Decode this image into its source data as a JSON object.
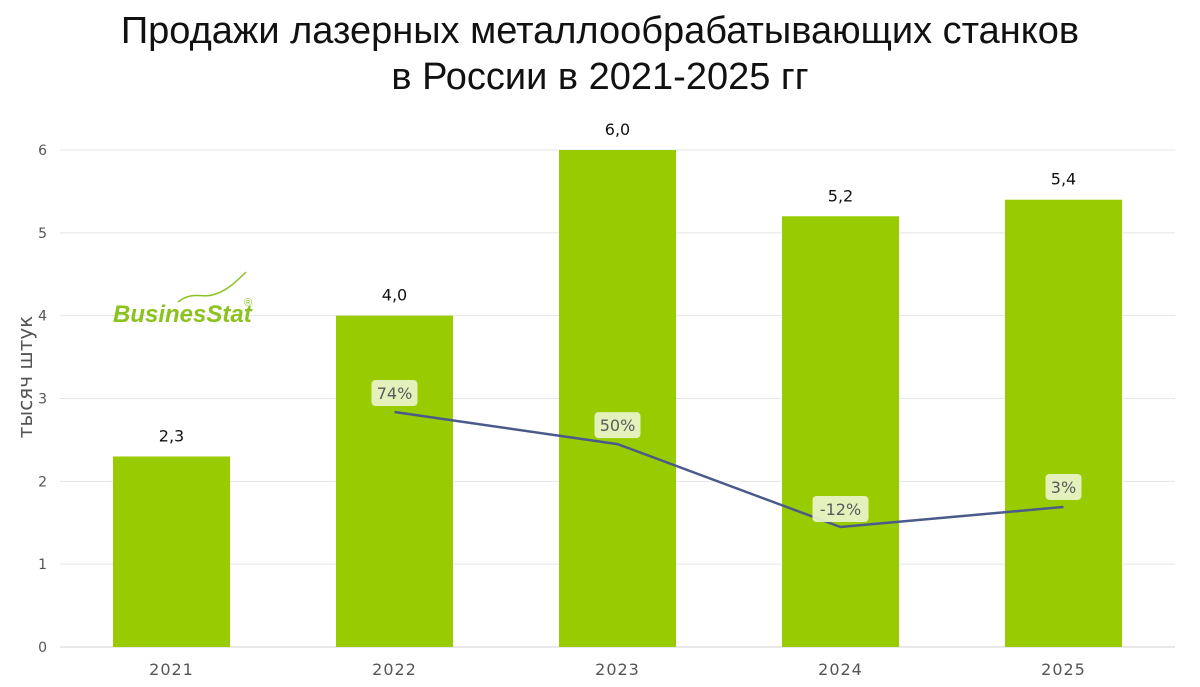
{
  "chart_data": {
    "type": "bar",
    "title_lines": [
      "Продажи лазерных металлообрабатывающих станков",
      "в России в 2021-2025 гг"
    ],
    "ylabel": "тысяч штук",
    "ylim": [
      0,
      6
    ],
    "yticks": [
      "0",
      "1",
      "2",
      "3",
      "4",
      "5",
      "6"
    ],
    "categories": [
      "2021",
      "2022",
      "2023",
      "2024",
      "2025"
    ],
    "series": [
      {
        "name": "Продажи",
        "values": [
          2.3,
          4.0,
          6.0,
          5.2,
          5.4
        ],
        "labels": [
          "2,3",
          "4,0",
          "6,0",
          "5,2",
          "5,4"
        ]
      }
    ],
    "growth": {
      "categories": [
        "2022",
        "2023",
        "2024",
        "2025"
      ],
      "values": [
        74,
        50,
        -12,
        3
      ],
      "labels": [
        "74%",
        "50%",
        "-12%",
        "3%"
      ]
    },
    "colors": {
      "bar": "#99cc00",
      "line": "#4a5a8a",
      "grid": "#e5e5e5",
      "badge": "#eaf4cc"
    },
    "logo": {
      "text": "BusinesStat",
      "mark": "®"
    }
  }
}
